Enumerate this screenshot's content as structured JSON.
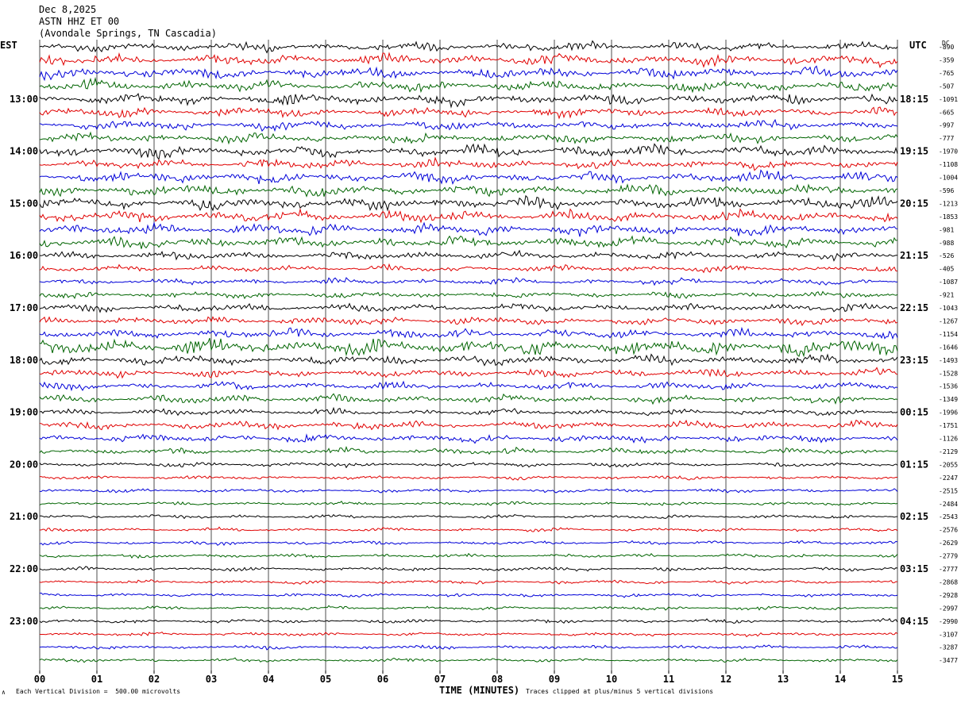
{
  "header": {
    "date": "Dec 8,2025",
    "station": "ASTN HHZ ET 00",
    "location": "(Avondale Springs, TN Cascadia)"
  },
  "left_tz": "EST",
  "right_tz": "UTC",
  "dc_label": "DC",
  "footer": {
    "scale_note": "Each Vertical Division =  500.00 microvolts",
    "xlabel": "TIME (MINUTES)",
    "clip_note": "Traces clipped at plus/minus 5 vertical divisions",
    "corner_mark": "∧"
  },
  "colors": {
    "trace_cycle": [
      "#000000",
      "#e00000",
      "#0000d8",
      "#006400"
    ],
    "grid": "#000000"
  },
  "chart_data": {
    "type": "line",
    "title": "",
    "xlabel": "TIME (MINUTES)",
    "x_ticks": [
      "00",
      "01",
      "02",
      "03",
      "04",
      "05",
      "06",
      "07",
      "08",
      "09",
      "10",
      "11",
      "12",
      "13",
      "14",
      "15"
    ],
    "xlim": [
      0,
      15
    ],
    "rows_per_hour": 4,
    "minutes_per_row": 15,
    "est_hour_labels": [
      "13:00",
      "14:00",
      "15:00",
      "16:00",
      "17:00",
      "18:00",
      "19:00",
      "20:00",
      "21:00",
      "22:00",
      "23:00"
    ],
    "utc_hour_labels": [
      "18:15",
      "19:15",
      "20:15",
      "21:15",
      "22:15",
      "23:15",
      "00:15",
      "01:15",
      "02:15",
      "03:15",
      "04:15"
    ],
    "dc_offsets": [
      -890,
      -359,
      -765,
      -507,
      -1091,
      -665,
      -997,
      -777,
      -1970,
      -1108,
      -1004,
      -596,
      -1213,
      -1853,
      -981,
      -988,
      -526,
      -405,
      -1087,
      -921,
      -1043,
      -1267,
      -1154,
      -1646,
      -1493,
      -1528,
      -1536,
      -1349,
      -1996,
      -1751,
      -1126,
      -2129,
      -2055,
      -2247,
      -2515,
      -2484,
      -2543,
      -2576,
      -2629,
      -2779,
      -2777,
      -2868,
      -2928,
      -2997,
      -2990,
      -3107,
      -3287,
      -3477
    ],
    "amplitude_divisions": [
      3.0,
      3.5,
      3.5,
      3.5,
      3.5,
      3.0,
      3.0,
      3.0,
      3.8,
      3.0,
      3.5,
      3.5,
      3.8,
      3.8,
      3.5,
      3.5,
      2.5,
      2.0,
      2.0,
      2.0,
      2.5,
      2.5,
      3.0,
      5.0,
      3.0,
      2.5,
      2.5,
      2.5,
      2.0,
      2.5,
      2.5,
      2.0,
      1.5,
      1.2,
      1.2,
      1.2,
      1.2,
      1.2,
      1.2,
      1.2,
      1.2,
      1.2,
      1.2,
      1.2,
      1.2,
      1.2,
      1.2,
      1.2
    ]
  }
}
